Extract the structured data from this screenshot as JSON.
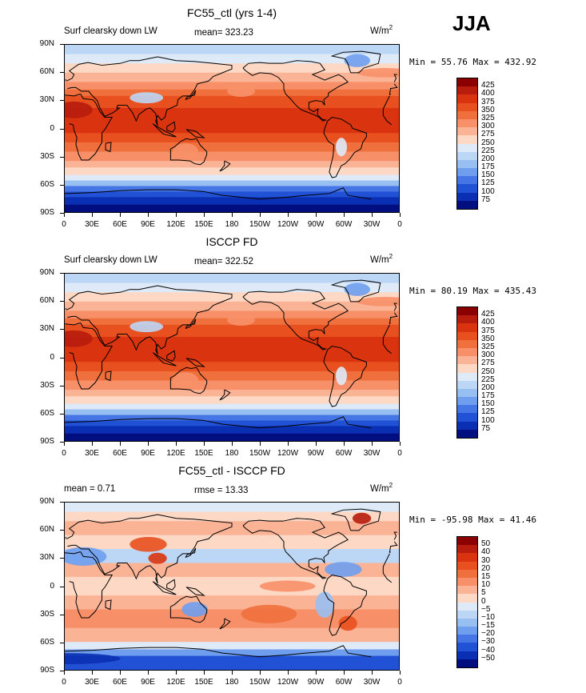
{
  "season": "JJA",
  "panels": [
    {
      "title": "FC55_ctl (yrs 1-4)",
      "left_text": "Surf clearsky down LW",
      "center_text": "mean= 323.23",
      "units": "W/m",
      "units_sup": "2",
      "minmax": "Min =  55.76 Max = 432.92",
      "levels": [
        "425",
        "400",
        "375",
        "350",
        "325",
        "300",
        "275",
        "250",
        "225",
        "200",
        "175",
        "150",
        "125",
        "100",
        "75"
      ],
      "colors": [
        "#8b0000",
        "#b71c0c",
        "#d9340f",
        "#e8501f",
        "#f0703d",
        "#f79068",
        "#fbb396",
        "#fdd8c4",
        "#deeaf8",
        "#bcd6f5",
        "#98bff2",
        "#6f9eee",
        "#4676e6",
        "#2151d4",
        "#0a2fb3",
        "#000e80"
      ],
      "type": "absolute"
    },
    {
      "title": "ISCCP FD",
      "left_text": "Surf clearsky down LW",
      "center_text": "mean= 322.52",
      "units": "W/m",
      "units_sup": "2",
      "minmax": "Min =  80.19 Max = 435.43",
      "levels": [
        "425",
        "400",
        "375",
        "350",
        "325",
        "300",
        "275",
        "250",
        "225",
        "200",
        "175",
        "150",
        "125",
        "100",
        "75"
      ],
      "colors": [
        "#8b0000",
        "#b71c0c",
        "#d9340f",
        "#e8501f",
        "#f0703d",
        "#f79068",
        "#fbb396",
        "#fdd8c4",
        "#deeaf8",
        "#bcd6f5",
        "#98bff2",
        "#6f9eee",
        "#4676e6",
        "#2151d4",
        "#0a2fb3",
        "#000e80"
      ],
      "type": "absolute"
    },
    {
      "title": "FC55_ctl - ISCCP FD",
      "left_text": "mean =   0.71",
      "center_text": "rmse =  13.33",
      "units": "W/m",
      "units_sup": "2",
      "minmax": "Min = -95.98 Max =  41.46",
      "levels": [
        "50",
        "40",
        "30",
        "20",
        "15",
        "10",
        "5",
        "0",
        "−5",
        "−10",
        "−15",
        "−20",
        "−30",
        "−40",
        "−50"
      ],
      "colors": [
        "#8b0000",
        "#b71c0c",
        "#d9340f",
        "#e8501f",
        "#f0703d",
        "#f79068",
        "#fbb396",
        "#fdd8c4",
        "#deeaf8",
        "#bcd6f5",
        "#98bff2",
        "#6f9eee",
        "#4676e6",
        "#2151d4",
        "#0a2fb3",
        "#000e80"
      ],
      "type": "difference"
    }
  ],
  "lat_labels": [
    "90N",
    "60N",
    "30N",
    "0",
    "30S",
    "60S",
    "90S"
  ],
  "lon_labels": [
    "0",
    "30E",
    "60E",
    "90E",
    "120E",
    "150E",
    "180",
    "150W",
    "120W",
    "90W",
    "60W",
    "30W",
    "0"
  ]
}
